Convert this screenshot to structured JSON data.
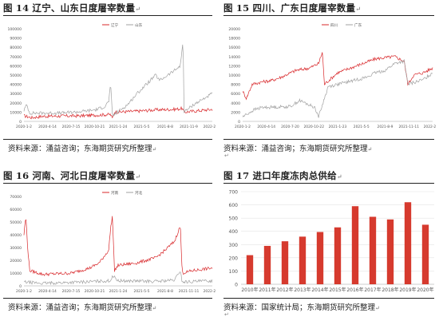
{
  "colors": {
    "red": "#d8272a",
    "gray": "#a0a0a0",
    "bar": "#d63a2e",
    "axis": "#bfbfbf",
    "text": "#555555"
  },
  "para_mark": "↵",
  "panels": [
    {
      "title": "图 14 辽宁、山东日度屠宰数量",
      "source": "资料来源：涌益咨询；东海期货研究所整理"
    },
    {
      "title": "图 15 四川、广东日度屠宰数量",
      "source": "资料来源：涌益咨询；东海期货研究所整理"
    },
    {
      "title": "图 16 河南、河北日度屠宰数量",
      "source": "资料来源：涌益咨询；东海期货研究所整理"
    },
    {
      "title": "图 17 进口年度冻肉总供给",
      "source": "资料来源：国家统计局；东海期货研究所整理"
    }
  ],
  "chart_data": [
    {
      "type": "line",
      "legend_position": "top",
      "y_ticks": [
        "0",
        "10000",
        "20000",
        "30000",
        "40000",
        "50000",
        "60000",
        "70000",
        "80000",
        "90000",
        "100000"
      ],
      "ylim": [
        0,
        100000
      ],
      "x_ticks": [
        "2020-1-2",
        "2020-4-14",
        "2020-7-15",
        "2020-10-21",
        "2021-1-24",
        "2021-5-5",
        "2021-8-8",
        "2021-11-9",
        "2022-2-24"
      ],
      "series": [
        {
          "name": "辽宁",
          "color": "red",
          "key_points": [
            [
              0,
              6000
            ],
            [
              0.04,
              4000
            ],
            [
              0.1,
              5500
            ],
            [
              0.3,
              6000
            ],
            [
              0.46,
              7500
            ],
            [
              0.47,
              3000
            ],
            [
              0.48,
              10000
            ],
            [
              0.6,
              11000
            ],
            [
              0.7,
              12500
            ],
            [
              0.8,
              13000
            ],
            [
              0.84,
              14000
            ],
            [
              0.85,
              10000
            ],
            [
              0.95,
              12000
            ],
            [
              1,
              13000
            ]
          ]
        },
        {
          "name": "山东",
          "color": "gray",
          "key_points": [
            [
              0,
              12000
            ],
            [
              0.015,
              18000
            ],
            [
              0.03,
              9000
            ],
            [
              0.2,
              9000
            ],
            [
              0.3,
              10500
            ],
            [
              0.38,
              12500
            ],
            [
              0.43,
              16000
            ],
            [
              0.45,
              22000
            ],
            [
              0.46,
              40000
            ],
            [
              0.47,
              6000
            ],
            [
              0.55,
              18000
            ],
            [
              0.6,
              30000
            ],
            [
              0.7,
              50000
            ],
            [
              0.72,
              44000
            ],
            [
              0.8,
              55000
            ],
            [
              0.83,
              60000
            ],
            [
              0.845,
              88000
            ],
            [
              0.85,
              10000
            ],
            [
              0.9,
              18000
            ],
            [
              1,
              30000
            ]
          ]
        }
      ]
    },
    {
      "type": "line",
      "legend_position": "top",
      "y_ticks": [
        "0",
        "2000",
        "4000",
        "6000",
        "8000",
        "10000",
        "12000",
        "14000",
        "16000",
        "18000",
        "20000"
      ],
      "ylim": [
        0,
        20000
      ],
      "x_ticks": [
        "2020-1-2",
        "2020-4-14",
        "2020-7-20",
        "2020-10-22",
        "2021-1-23",
        "2021-5-5",
        "2021-8-9",
        "2021-11-11",
        "2022-2-24"
      ],
      "series": [
        {
          "name": "四川",
          "color": "red",
          "key_points": [
            [
              0,
              6500
            ],
            [
              0.02,
              5000
            ],
            [
              0.05,
              8000
            ],
            [
              0.1,
              8500
            ],
            [
              0.15,
              8800
            ],
            [
              0.2,
              9500
            ],
            [
              0.28,
              11000
            ],
            [
              0.35,
              11500
            ],
            [
              0.4,
              12500
            ],
            [
              0.42,
              15000
            ],
            [
              0.43,
              8000
            ],
            [
              0.5,
              10500
            ],
            [
              0.6,
              12000
            ],
            [
              0.7,
              13500
            ],
            [
              0.8,
              14000
            ],
            [
              0.85,
              13000
            ],
            [
              0.87,
              8000
            ],
            [
              0.9,
              10000
            ],
            [
              0.95,
              10500
            ],
            [
              1,
              11500
            ]
          ]
        },
        {
          "name": "广东",
          "color": "gray",
          "key_points": [
            [
              0,
              1000
            ],
            [
              0.06,
              2500
            ],
            [
              0.1,
              3000
            ],
            [
              0.25,
              3200
            ],
            [
              0.3,
              4500
            ],
            [
              0.38,
              3000
            ],
            [
              0.4,
              1000
            ],
            [
              0.45,
              7500
            ],
            [
              0.55,
              8500
            ],
            [
              0.6,
              9000
            ],
            [
              0.65,
              9500
            ],
            [
              0.7,
              10500
            ],
            [
              0.75,
              11000
            ],
            [
              0.8,
              12500
            ],
            [
              0.85,
              13000
            ],
            [
              0.87,
              8000
            ],
            [
              0.95,
              9000
            ],
            [
              1,
              10500
            ]
          ]
        }
      ]
    },
    {
      "type": "line",
      "legend_position": "top",
      "y_ticks": [
        "0",
        "10000",
        "20000",
        "30000",
        "40000",
        "50000",
        "60000",
        "70000"
      ],
      "ylim": [
        0,
        70000
      ],
      "x_ticks": [
        "2020-1-2",
        "2020-4-14",
        "2020-7-15",
        "2020-10-21",
        "2021-1-24",
        "2021-5-5",
        "2021-8-8",
        "2021-11-11",
        "2022-2-24"
      ],
      "series": [
        {
          "name": "河南",
          "color": "red",
          "key_points": [
            [
              0,
              40000
            ],
            [
              0.01,
              55000
            ],
            [
              0.02,
              30000
            ],
            [
              0.03,
              12000
            ],
            [
              0.1,
              9000
            ],
            [
              0.25,
              10000
            ],
            [
              0.35,
              14000
            ],
            [
              0.4,
              18000
            ],
            [
              0.45,
              28000
            ],
            [
              0.46,
              45000
            ],
            [
              0.47,
              55000
            ],
            [
              0.48,
              12000
            ],
            [
              0.5,
              16000
            ],
            [
              0.6,
              18000
            ],
            [
              0.7,
              22000
            ],
            [
              0.75,
              28000
            ],
            [
              0.8,
              35000
            ],
            [
              0.83,
              47000
            ],
            [
              0.84,
              10000
            ],
            [
              0.9,
              12000
            ],
            [
              1,
              14000
            ]
          ]
        },
        {
          "name": "河北",
          "color": "gray",
          "key_points": [
            [
              0,
              3000
            ],
            [
              0.1,
              2000
            ],
            [
              0.2,
              2500
            ],
            [
              0.3,
              3000
            ],
            [
              0.46,
              4000
            ],
            [
              0.47,
              8000
            ],
            [
              0.5,
              4000
            ],
            [
              0.7,
              3500
            ],
            [
              0.8,
              4500
            ],
            [
              0.83,
              12000
            ],
            [
              0.84,
              3000
            ],
            [
              1,
              4000
            ]
          ]
        }
      ]
    },
    {
      "type": "bar",
      "categories": [
        "2010年",
        "2011年",
        "2012年",
        "2013年",
        "2014年",
        "2015年",
        "2016年",
        "2017年",
        "2018年",
        "2019年",
        "2020年"
      ],
      "values": [
        220,
        290,
        325,
        360,
        395,
        430,
        590,
        510,
        490,
        620,
        450
      ],
      "ylim": [
        0,
        700
      ],
      "y_ticks": [
        "0",
        "100",
        "200",
        "300",
        "400",
        "500",
        "600",
        "700"
      ]
    }
  ],
  "stray_marks": [
    "↵",
    "↵"
  ]
}
